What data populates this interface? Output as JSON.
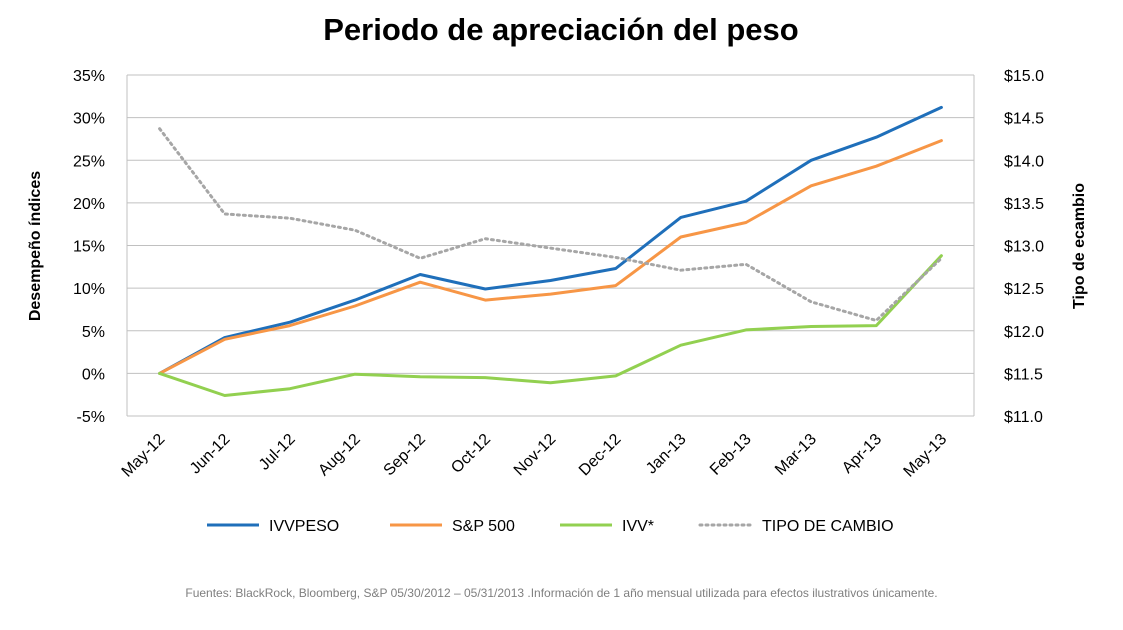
{
  "chart_data": {
    "type": "line",
    "title": "Periodo de apreciación del peso",
    "ylabel": "Desempeño índices",
    "y2label": "Tipo de ecambio",
    "categories": [
      "May-12",
      "Jun-12",
      "Jul-12",
      "Aug-12",
      "Sep-12",
      "Oct-12",
      "Nov-12",
      "Dec-12",
      "Jan-13",
      "Feb-13",
      "Mar-13",
      "Apr-13",
      "May-13"
    ],
    "ylim": [
      -5,
      35
    ],
    "yticks": [
      -5,
      0,
      5,
      10,
      15,
      20,
      25,
      30,
      35
    ],
    "ytick_labels": [
      "-5%",
      "0%",
      "5%",
      "10%",
      "15%",
      "20%",
      "25%",
      "30%",
      "35%"
    ],
    "y2lim": [
      11.0,
      15.0
    ],
    "y2ticks": [
      11.0,
      11.5,
      12.0,
      12.5,
      13.0,
      13.5,
      14.0,
      14.5,
      15.0
    ],
    "y2tick_labels": [
      "$11.0",
      "$11.5",
      "$12.0",
      "$12.5",
      "$13.0",
      "$13.5",
      "$14.0",
      "$14.5",
      "$15.0"
    ],
    "grid": true,
    "legend_position": "bottom",
    "series": [
      {
        "name": "IVVPESO",
        "axis": "left",
        "color": "#1f6fba",
        "style": "solid",
        "values": [
          0,
          4.2,
          6.0,
          8.6,
          11.6,
          9.9,
          10.9,
          12.3,
          18.3,
          20.2,
          25.0,
          27.7,
          31.2
        ]
      },
      {
        "name": "S&P 500",
        "axis": "left",
        "color": "#f79646",
        "style": "solid",
        "values": [
          0,
          4.0,
          5.6,
          7.9,
          10.7,
          8.6,
          9.3,
          10.3,
          16.0,
          17.7,
          22.0,
          24.3,
          27.3
        ]
      },
      {
        "name": "IVV*",
        "axis": "left",
        "color": "#92d050",
        "style": "solid",
        "values": [
          0,
          -2.6,
          -1.8,
          -0.1,
          -0.4,
          -0.5,
          -1.1,
          -0.3,
          3.3,
          5.1,
          5.5,
          5.6,
          13.8
        ]
      },
      {
        "name": "TIPO DE CAMBIO",
        "axis": "right",
        "color": "#a6a6a6",
        "style": "dotted",
        "values": [
          14.37,
          13.37,
          13.32,
          13.18,
          12.85,
          13.08,
          12.97,
          12.86,
          12.71,
          12.78,
          12.34,
          12.12,
          12.85
        ]
      }
    ]
  },
  "source_note": "Fuentes: BlackRock, Bloomberg, S&P 05/30/2012 – 05/31/2013 .Información de 1 año mensual utilizada para efectos ilustrativos únicamente."
}
